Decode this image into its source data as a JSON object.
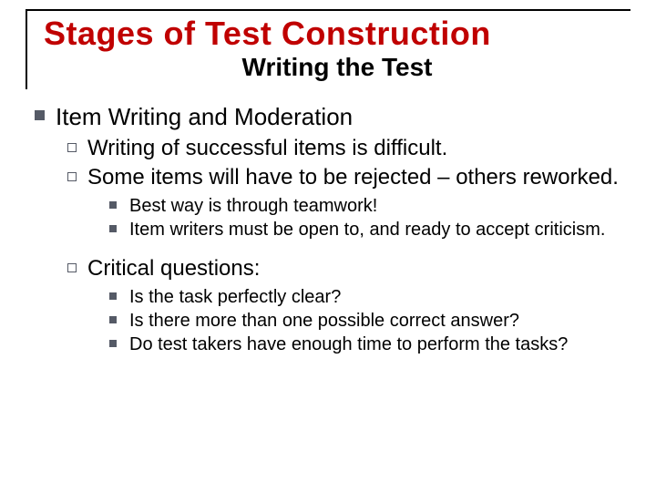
{
  "colors": {
    "title": "#c00000",
    "text": "#000000",
    "bullet": "#555a66",
    "border": "#000000",
    "background": "#ffffff"
  },
  "typography": {
    "title_family": "Arial Black",
    "body_family": "Arial",
    "title_fontsize": 36,
    "subtitle_fontsize": 28,
    "l1_fontsize": 26,
    "l2_fontsize": 24,
    "l3_fontsize": 20
  },
  "title": "Stages of Test Construction",
  "subtitle": "Writing the Test",
  "level1": {
    "heading": "Item Writing and Moderation"
  },
  "level2": {
    "items": [
      "Writing of successful items is difficult.",
      "Some items will have to be rejected – others reworked.",
      "Critical questions:"
    ]
  },
  "level3_a": {
    "items": [
      "Best way is through teamwork!",
      "Item writers must be open to, and ready to accept criticism."
    ]
  },
  "level3_b": {
    "items": [
      "Is the task perfectly clear?",
      "Is there more than one possible correct answer?",
      "Do test takers have enough time to perform the tasks?"
    ]
  },
  "bullet_styles": {
    "l1": "filled-square",
    "l2": "outline-square",
    "l3": "small-filled-square"
  }
}
